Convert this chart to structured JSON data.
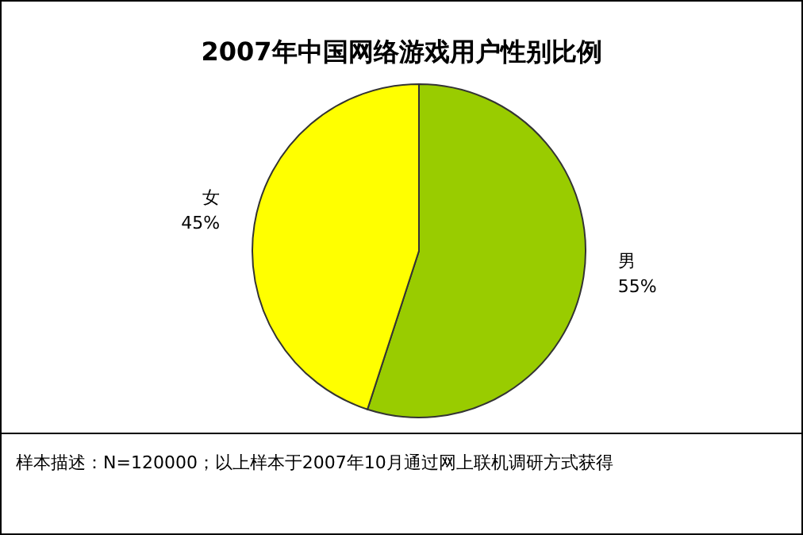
{
  "chart_data": {
    "type": "pie",
    "title": "2007年中国网络游戏用户性别比例",
    "categories": [
      "男",
      "女"
    ],
    "values": [
      55,
      45
    ],
    "colors": [
      "#99cc00",
      "#ffff00"
    ],
    "value_labels": [
      "55%",
      "45%"
    ],
    "annotations": [
      "样本描述：N=120000；以上样本于2007年10月通过网上联机调研方式获得"
    ]
  }
}
